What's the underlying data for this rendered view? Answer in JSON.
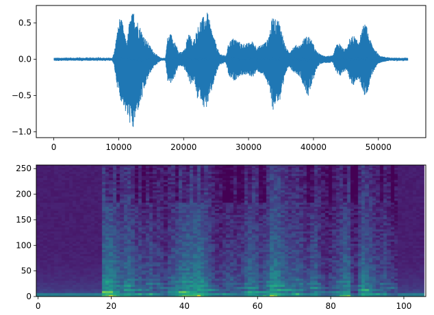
{
  "chart_data": [
    {
      "type": "line",
      "title": "",
      "xlabel": "",
      "ylabel": "",
      "xlim": [
        -2700,
        57300
      ],
      "ylim": [
        -1.08,
        0.74
      ],
      "x_ticks": [
        0,
        10000,
        20000,
        30000,
        40000,
        50000
      ],
      "x_tick_labels": [
        "0",
        "10000",
        "20000",
        "30000",
        "40000",
        "50000"
      ],
      "y_ticks": [
        0.5,
        0.0,
        -0.5,
        -1.0
      ],
      "y_tick_labels": [
        "0.5",
        "0.0",
        "−0.5",
        "−1.0"
      ],
      "grid": false,
      "line_color": "#1f77b4",
      "series": [
        {
          "x_range": [
            0,
            54500
          ],
          "silence_amplitude": 0.02,
          "upper_envelope": [
            [
              0,
              0.02
            ],
            [
              9000,
              0.02
            ],
            [
              9300,
              0.1
            ],
            [
              9800,
              0.4
            ],
            [
              10200,
              0.6
            ],
            [
              10600,
              0.5
            ],
            [
              11000,
              0.3
            ],
            [
              11300,
              0.25
            ],
            [
              11600,
              0.5
            ],
            [
              12000,
              0.62
            ],
            [
              12300,
              0.66
            ],
            [
              12800,
              0.55
            ],
            [
              13300,
              0.45
            ],
            [
              14000,
              0.3
            ],
            [
              14600,
              0.22
            ],
            [
              15300,
              0.12
            ],
            [
              16000,
              0.05
            ],
            [
              16500,
              0.02
            ],
            [
              17200,
              0.02
            ],
            [
              17500,
              0.3
            ],
            [
              18000,
              0.36
            ],
            [
              18600,
              0.27
            ],
            [
              19200,
              0.1
            ],
            [
              19800,
              0.1
            ],
            [
              20200,
              0.15
            ],
            [
              20800,
              0.4
            ],
            [
              21400,
              0.22
            ],
            [
              22000,
              0.4
            ],
            [
              22600,
              0.55
            ],
            [
              23200,
              0.6
            ],
            [
              23700,
              0.65
            ],
            [
              24200,
              0.45
            ],
            [
              24700,
              0.3
            ],
            [
              25500,
              0.08
            ],
            [
              26500,
              0.05
            ],
            [
              27000,
              0.25
            ],
            [
              27800,
              0.3
            ],
            [
              28400,
              0.25
            ],
            [
              29000,
              0.22
            ],
            [
              29800,
              0.22
            ],
            [
              30600,
              0.25
            ],
            [
              31400,
              0.17
            ],
            [
              32200,
              0.22
            ],
            [
              32800,
              0.25
            ],
            [
              33300,
              0.4
            ],
            [
              33700,
              0.6
            ],
            [
              34100,
              0.55
            ],
            [
              34600,
              0.56
            ],
            [
              35000,
              0.45
            ],
            [
              35600,
              0.2
            ],
            [
              36200,
              0.1
            ],
            [
              36800,
              0.17
            ],
            [
              37400,
              0.2
            ],
            [
              38000,
              0.2
            ],
            [
              38600,
              0.3
            ],
            [
              39200,
              0.33
            ],
            [
              39800,
              0.25
            ],
            [
              40400,
              0.12
            ],
            [
              41000,
              0.07
            ],
            [
              41600,
              0.05
            ],
            [
              42400,
              0.05
            ],
            [
              43000,
              0.05
            ],
            [
              43500,
              0.2
            ],
            [
              44000,
              0.22
            ],
            [
              44600,
              0.15
            ],
            [
              45200,
              0.15
            ],
            [
              45600,
              0.3
            ],
            [
              46200,
              0.33
            ],
            [
              46800,
              0.25
            ],
            [
              47300,
              0.35
            ],
            [
              47800,
              0.5
            ],
            [
              48200,
              0.45
            ],
            [
              48700,
              0.28
            ],
            [
              49200,
              0.18
            ],
            [
              50000,
              0.07
            ],
            [
              50600,
              0.04
            ],
            [
              51200,
              0.03
            ],
            [
              52000,
              0.02
            ],
            [
              54500,
              0.02
            ]
          ],
          "lower_envelope": [
            [
              0,
              -0.02
            ],
            [
              9000,
              -0.02
            ],
            [
              9300,
              -0.1
            ],
            [
              9800,
              -0.4
            ],
            [
              10200,
              -0.55
            ],
            [
              10800,
              -0.65
            ],
            [
              11200,
              -0.8
            ],
            [
              11600,
              -0.85
            ],
            [
              11900,
              -0.95
            ],
            [
              12200,
              -1.0
            ],
            [
              12500,
              -0.85
            ],
            [
              13000,
              -0.7
            ],
            [
              13600,
              -0.55
            ],
            [
              14200,
              -0.35
            ],
            [
              14800,
              -0.2
            ],
            [
              15500,
              -0.1
            ],
            [
              16500,
              -0.02
            ],
            [
              17200,
              -0.02
            ],
            [
              17500,
              -0.3
            ],
            [
              18000,
              -0.35
            ],
            [
              18600,
              -0.25
            ],
            [
              19200,
              -0.1
            ],
            [
              19800,
              -0.1
            ],
            [
              20500,
              -0.2
            ],
            [
              21000,
              -0.35
            ],
            [
              21600,
              -0.3
            ],
            [
              22100,
              -0.55
            ],
            [
              22700,
              -0.55
            ],
            [
              23300,
              -0.72
            ],
            [
              23800,
              -0.6
            ],
            [
              24300,
              -0.45
            ],
            [
              24900,
              -0.25
            ],
            [
              25500,
              -0.08
            ],
            [
              26500,
              -0.05
            ],
            [
              27000,
              -0.25
            ],
            [
              27800,
              -0.3
            ],
            [
              28400,
              -0.25
            ],
            [
              29000,
              -0.22
            ],
            [
              29800,
              -0.22
            ],
            [
              30600,
              -0.25
            ],
            [
              31400,
              -0.17
            ],
            [
              32200,
              -0.22
            ],
            [
              32800,
              -0.3
            ],
            [
              33300,
              -0.5
            ],
            [
              33800,
              -0.72
            ],
            [
              34300,
              -0.58
            ],
            [
              34800,
              -0.6
            ],
            [
              35200,
              -0.5
            ],
            [
              35700,
              -0.2
            ],
            [
              36200,
              -0.1
            ],
            [
              36800,
              -0.17
            ],
            [
              37400,
              -0.2
            ],
            [
              38000,
              -0.25
            ],
            [
              38600,
              -0.4
            ],
            [
              39200,
              -0.53
            ],
            [
              39800,
              -0.35
            ],
            [
              40400,
              -0.15
            ],
            [
              41000,
              -0.07
            ],
            [
              41600,
              -0.05
            ],
            [
              42400,
              -0.05
            ],
            [
              43000,
              -0.05
            ],
            [
              43500,
              -0.2
            ],
            [
              44000,
              -0.25
            ],
            [
              44600,
              -0.18
            ],
            [
              45200,
              -0.15
            ],
            [
              45600,
              -0.3
            ],
            [
              46200,
              -0.38
            ],
            [
              46800,
              -0.28
            ],
            [
              47300,
              -0.35
            ],
            [
              47800,
              -0.5
            ],
            [
              48200,
              -0.5
            ],
            [
              48700,
              -0.3
            ],
            [
              49200,
              -0.18
            ],
            [
              50000,
              -0.07
            ],
            [
              50600,
              -0.04
            ],
            [
              51200,
              -0.03
            ],
            [
              52000,
              -0.02
            ],
            [
              54500,
              -0.02
            ]
          ]
        }
      ]
    },
    {
      "type": "heatmap",
      "title": "",
      "xlabel": "",
      "ylabel": "",
      "xlim": [
        -0.5,
        106.0
      ],
      "ylim": [
        0,
        257
      ],
      "x_ticks": [
        0,
        20,
        40,
        60,
        80,
        100
      ],
      "x_tick_labels": [
        "0",
        "20",
        "40",
        "60",
        "80",
        "100"
      ],
      "y_ticks": [
        0,
        50,
        100,
        150,
        200,
        250
      ],
      "y_tick_labels": [
        "0",
        "50",
        "100",
        "150",
        "200",
        "250"
      ],
      "grid": false,
      "colormap": "viridis",
      "n_frames": 106,
      "n_bins": 257,
      "frame_energy": [
        0.16,
        0.15,
        0.14,
        0.14,
        0.15,
        0.15,
        0.16,
        0.16,
        0.15,
        0.15,
        0.15,
        0.16,
        0.17,
        0.18,
        0.2,
        0.22,
        0.25,
        0.3,
        0.78,
        0.85,
        0.82,
        0.76,
        0.68,
        0.62,
        0.7,
        0.74,
        0.64,
        0.55,
        0.58,
        0.5,
        0.56,
        0.6,
        0.5,
        0.52,
        0.48,
        0.4,
        0.55,
        0.6,
        0.66,
        0.72,
        0.76,
        0.8,
        0.78,
        0.82,
        0.84,
        0.8,
        0.72,
        0.62,
        0.5,
        0.44,
        0.42,
        0.48,
        0.5,
        0.52,
        0.46,
        0.48,
        0.5,
        0.6,
        0.7,
        0.66,
        0.6,
        0.5,
        0.55,
        0.62,
        0.82,
        0.84,
        0.8,
        0.7,
        0.62,
        0.58,
        0.6,
        0.62,
        0.56,
        0.5,
        0.48,
        0.62,
        0.66,
        0.52,
        0.42,
        0.38,
        0.4,
        0.48,
        0.52,
        0.62,
        0.72,
        0.7,
        0.45,
        0.38,
        0.6,
        0.76,
        0.7,
        0.62,
        0.56,
        0.5,
        0.5,
        0.55,
        0.45,
        0.42,
        0.38,
        0.34,
        0.3,
        0.3,
        0.26,
        0.24,
        0.22,
        0.2
      ]
    }
  ]
}
